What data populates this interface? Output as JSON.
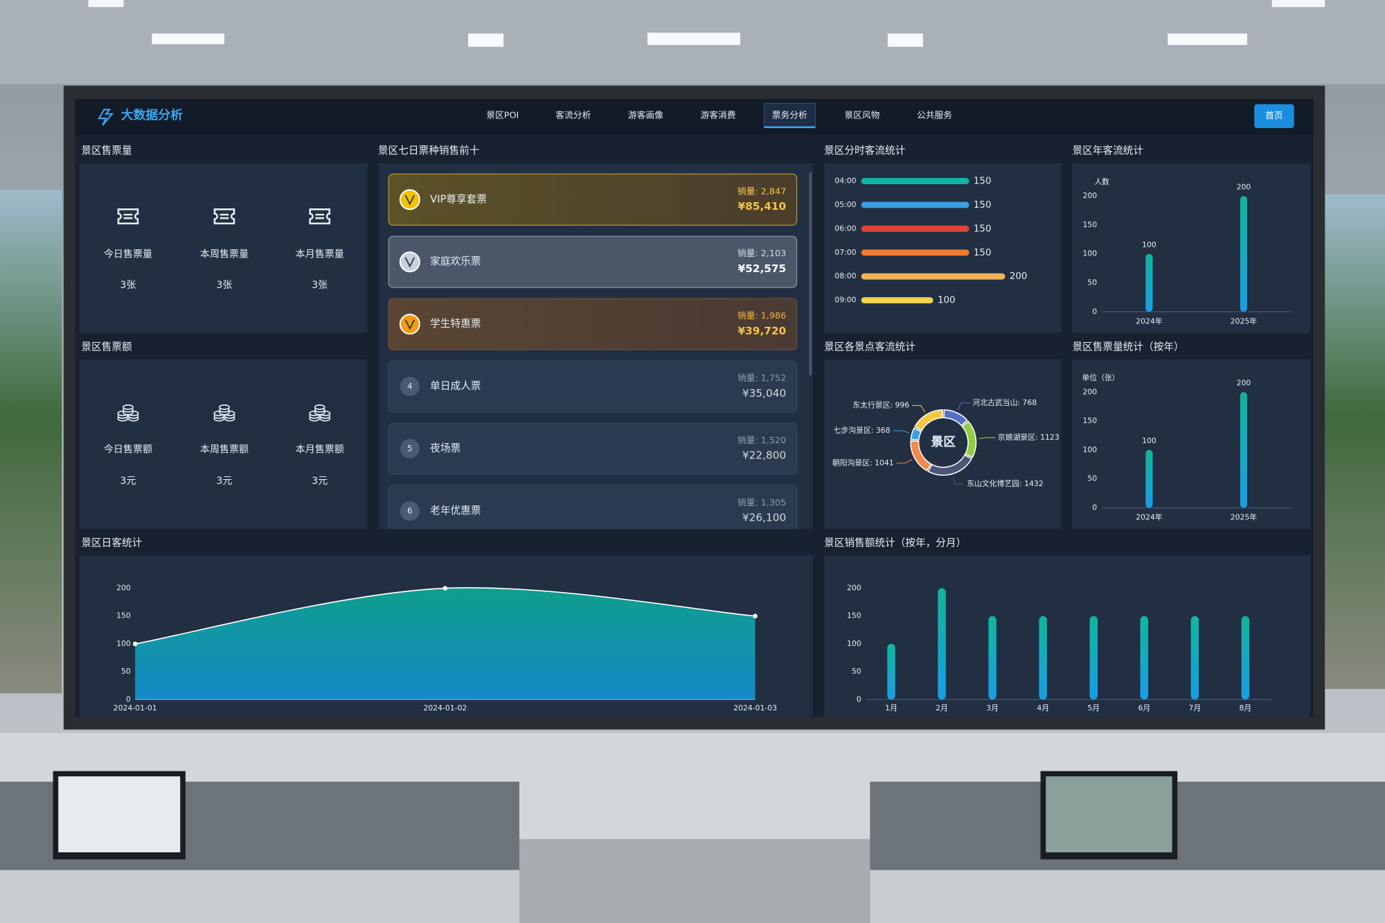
{
  "header": {
    "logo": "大数据分析",
    "nav": [
      "景区POI",
      "客流分析",
      "游客画像",
      "游客消费",
      "票务分析",
      "景区风物",
      "公共服务"
    ],
    "active_tab": 4,
    "button": "首页"
  },
  "ticket_count": {
    "title": "景区售票量",
    "items": [
      {
        "label": "今日售票量",
        "value": "3张"
      },
      {
        "label": "本周售票量",
        "value": "3张"
      },
      {
        "label": "本月售票量",
        "value": "3张"
      }
    ]
  },
  "ticket_amount": {
    "title": "景区售票额",
    "items": [
      {
        "label": "今日售票额",
        "value": "3元"
      },
      {
        "label": "本周售票额",
        "value": "3元"
      },
      {
        "label": "本月售票额",
        "value": "3元"
      }
    ]
  },
  "top_tickets": {
    "title": "景区七日票种销售前十",
    "items": [
      {
        "medal_color": "#f2c200",
        "name": "VIP尊享套票",
        "sales": "销量: 2,847",
        "amount": "¥85,410"
      },
      {
        "medal_color": "#c7d0dc",
        "name": "家庭欢乐票",
        "sales": "销量: 2,103",
        "amount": "¥52,575"
      },
      {
        "medal_color": "#f39c12",
        "name": "学生特惠票",
        "sales": "销量: 1,986",
        "amount": "¥39,720"
      },
      {
        "rank": 4,
        "name": "单日成人票",
        "sales": "销量: 1,752",
        "amount": "¥35,040"
      },
      {
        "rank": 5,
        "name": "夜场票",
        "sales": "销量: 1,520",
        "amount": "¥22,800"
      },
      {
        "rank": 6,
        "name": "老年优惠票",
        "sales": "销量: 1,305",
        "amount": "¥26,100"
      }
    ]
  },
  "chart_data": [
    {
      "type": "hbar",
      "title": "景区分时客流统计",
      "categories": [
        "04:00",
        "05:00",
        "06:00",
        "07:00",
        "08:00",
        "09:00"
      ],
      "values": [
        150,
        150,
        150,
        150,
        200,
        100
      ],
      "colors": [
        "#13b5a6",
        "#3b9fe0",
        "#e0413a",
        "#f07a35",
        "#f2b45a",
        "#f1d24b"
      ]
    },
    {
      "type": "bar",
      "title": "景区年客流统计",
      "axis_label": "人数",
      "categories": [
        "2024年",
        "2025年"
      ],
      "values": [
        100,
        200
      ],
      "ylim": [
        0,
        200
      ],
      "yticks": [
        0,
        50,
        100,
        150,
        200
      ],
      "show_values": true,
      "colors": [
        "#10b59c",
        "#1a9de6"
      ]
    },
    {
      "type": "pie",
      "title": "景区各景点客流统计",
      "center_label": "景区",
      "values": [
        768,
        1123,
        1432,
        1041,
        368,
        996
      ],
      "value_labels": [
        "河北古武当山: 768",
        "京娘湖景区: 1123",
        "东山文化博艺园: 1432",
        "朝阳沟景区: 1041",
        "七步沟景区: 368",
        "东太行景区: 996"
      ],
      "colors": [
        "#5470c6",
        "#91cc45",
        "#4a5578",
        "#f08a4b",
        "#3ba0e0",
        "#f5c842"
      ]
    },
    {
      "type": "bar",
      "title": "景区售票量统计（按年）",
      "axis_label": "单位（张）",
      "categories": [
        "2024年",
        "2025年"
      ],
      "values": [
        100,
        200
      ],
      "ylim": [
        0,
        200
      ],
      "yticks": [
        0,
        50,
        100,
        150,
        200
      ],
      "show_values": true,
      "colors": [
        "#10b59c",
        "#1a9de6"
      ]
    },
    {
      "type": "area",
      "title": "景区日客统计",
      "x": [
        "2024-01-01",
        "2024-01-02",
        "2024-01-03"
      ],
      "values": [
        100,
        200,
        150
      ],
      "ylim": [
        0,
        200
      ],
      "yticks": [
        0,
        50,
        100,
        150,
        200
      ],
      "colors": [
        "#0f9e8c",
        "#1489c8"
      ],
      "line_color": "#ffffff"
    },
    {
      "type": "bar",
      "title": "景区销售额统计（按年，分月）",
      "categories": [
        "1月",
        "2月",
        "3月",
        "4月",
        "5月",
        "6月",
        "7月",
        "8月"
      ],
      "values": [
        100,
        200,
        150,
        150,
        150,
        150,
        150,
        150
      ],
      "ylim": [
        0,
        200
      ],
      "yticks": [
        0,
        50,
        100,
        150,
        200
      ],
      "show_values": false,
      "colors": [
        "#10b59c",
        "#1a9de6"
      ]
    }
  ]
}
